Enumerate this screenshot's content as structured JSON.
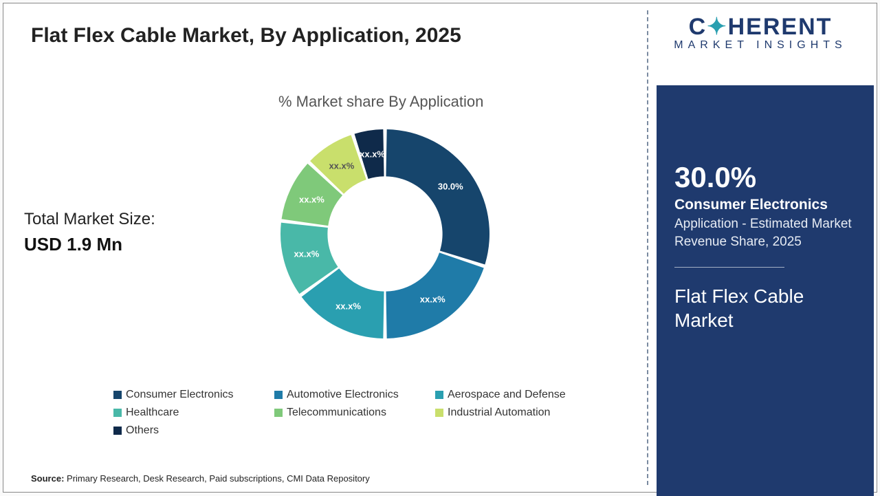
{
  "title": "Flat Flex Cable Market, By Application, 2025",
  "chart": {
    "type": "donut",
    "subtitle": "% Market share By Application",
    "inner_radius_pct": 55,
    "outer_radius_pct": 100,
    "gap_deg": 2,
    "background_color": "#ffffff",
    "slices": [
      {
        "key": "consumer_electronics",
        "label": "Consumer Electronics",
        "value": 30.0,
        "display": "30.0%",
        "color": "#16456c",
        "label_color": "#ffffff"
      },
      {
        "key": "automotive_electronics",
        "label": "Automotive Electronics",
        "value": 20.0,
        "display": "xx.x%",
        "color": "#1f7ba8",
        "label_color": "#ffffff"
      },
      {
        "key": "aerospace_defense",
        "label": "Aerospace and Defense",
        "value": 15.0,
        "display": "xx.x%",
        "color": "#2a9fb0",
        "label_color": "#ffffff"
      },
      {
        "key": "healthcare",
        "label": "Healthcare",
        "value": 12.0,
        "display": "xx.x%",
        "color": "#49b8a8",
        "label_color": "#ffffff"
      },
      {
        "key": "telecom",
        "label": "Telecommunications",
        "value": 10.0,
        "display": "xx.x%",
        "color": "#7fc97a",
        "label_color": "#ffffff"
      },
      {
        "key": "industrial_automation",
        "label": "Industrial Automation",
        "value": 8.0,
        "display": "xx.x%",
        "color": "#c9df6c",
        "label_color": "#555555"
      },
      {
        "key": "others",
        "label": "Others",
        "value": 5.0,
        "display": "xx.x%",
        "color": "#0f2a4a",
        "label_color": "#ffffff"
      }
    ]
  },
  "total_market_size": {
    "label": "Total Market Size:",
    "value": "USD 1.9 Mn"
  },
  "legend_order": [
    "consumer_electronics",
    "automotive_electronics",
    "aerospace_defense",
    "healthcare",
    "telecom",
    "industrial_automation",
    "others"
  ],
  "source": {
    "prefix": "Source:",
    "text": "Primary Research, Desk Research, Paid subscriptions, CMI Data Repository"
  },
  "brand": {
    "line1_a": "C",
    "line1_b": "HERENT",
    "line2": "MARKET INSIGHTS",
    "accent_color": "#2a9fb0",
    "primary_color": "#1f3a6e"
  },
  "panel": {
    "bg": "#1f3a6e",
    "pct": "30.0%",
    "segment": "Consumer Electronics",
    "desc": "Application - Estimated Market Revenue Share, 2025",
    "market": "Flat Flex Cable Market"
  }
}
